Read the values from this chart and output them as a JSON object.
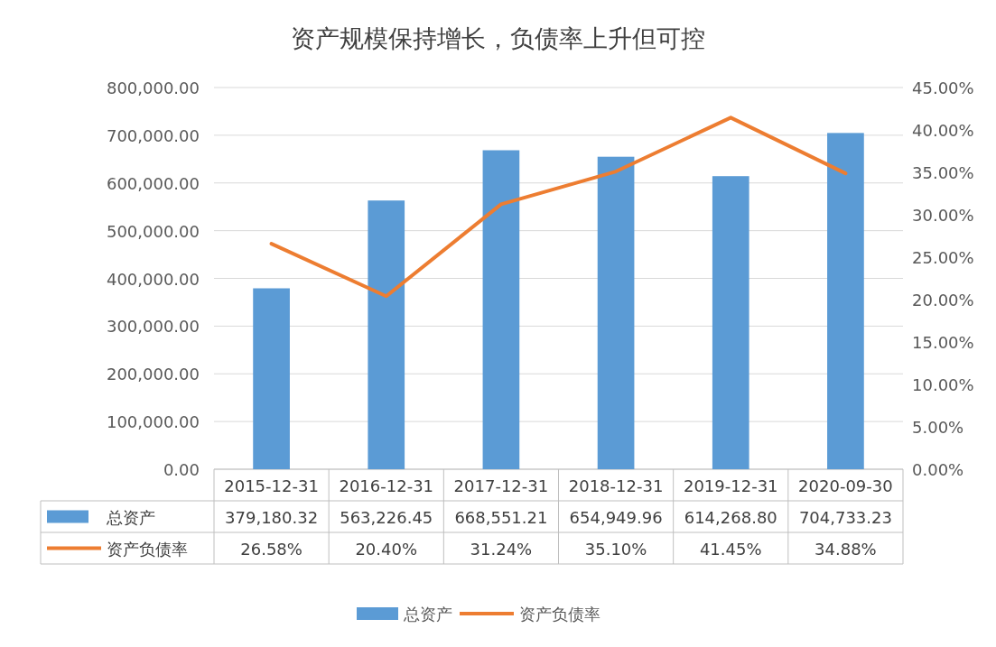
{
  "chart_data": {
    "type": "bar",
    "title": "资产规模保持增长，负债率上升但可控",
    "categories": [
      "2015-12-31",
      "2016-12-31",
      "2017-12-31",
      "2018-12-31",
      "2019-12-31",
      "2020-09-30"
    ],
    "series": [
      {
        "name": "总资产",
        "color": "#5b9bd5",
        "values": [
          379180.32,
          563226.45,
          668551.21,
          654949.96,
          614268.8,
          704733.23
        ],
        "value_labels": [
          "379,180.32",
          "563,226.45",
          "668,551.21",
          "654,949.96",
          "614,268.80",
          "704,733.23"
        ]
      },
      {
        "name": "资产负债率",
        "type": "line",
        "axis": "y2",
        "color": "#ed7d31",
        "values": [
          26.58,
          20.4,
          31.24,
          35.1,
          41.45,
          34.88
        ],
        "value_labels": [
          "26.58%",
          "20.40%",
          "31.24%",
          "35.10%",
          "41.45%",
          "34.88%"
        ]
      }
    ],
    "ylim": [
      0,
      800000
    ],
    "yticks": [
      {
        "value": 0,
        "label": "0.00"
      },
      {
        "value": 100000,
        "label": "100,000.00"
      },
      {
        "value": 200000,
        "label": "200,000.00"
      },
      {
        "value": 300000,
        "label": "300,000.00"
      },
      {
        "value": 400000,
        "label": "400,000.00"
      },
      {
        "value": 500000,
        "label": "500,000.00"
      },
      {
        "value": 600000,
        "label": "600,000.00"
      },
      {
        "value": 700000,
        "label": "700,000.00"
      },
      {
        "value": 800000,
        "label": "800,000.00"
      }
    ],
    "y2lim": [
      0,
      45
    ],
    "y2ticks": [
      {
        "value": 0,
        "label": "0.00%"
      },
      {
        "value": 5,
        "label": "5.00%"
      },
      {
        "value": 10,
        "label": "10.00%"
      },
      {
        "value": 15,
        "label": "15.00%"
      },
      {
        "value": 20,
        "label": "20.00%"
      },
      {
        "value": 25,
        "label": "25.00%"
      },
      {
        "value": 30,
        "label": "30.00%"
      },
      {
        "value": 35,
        "label": "35.00%"
      },
      {
        "value": 40,
        "label": "40.00%"
      },
      {
        "value": 45,
        "label": "45.00%"
      }
    ],
    "grid": "y",
    "legend": "bottom"
  }
}
